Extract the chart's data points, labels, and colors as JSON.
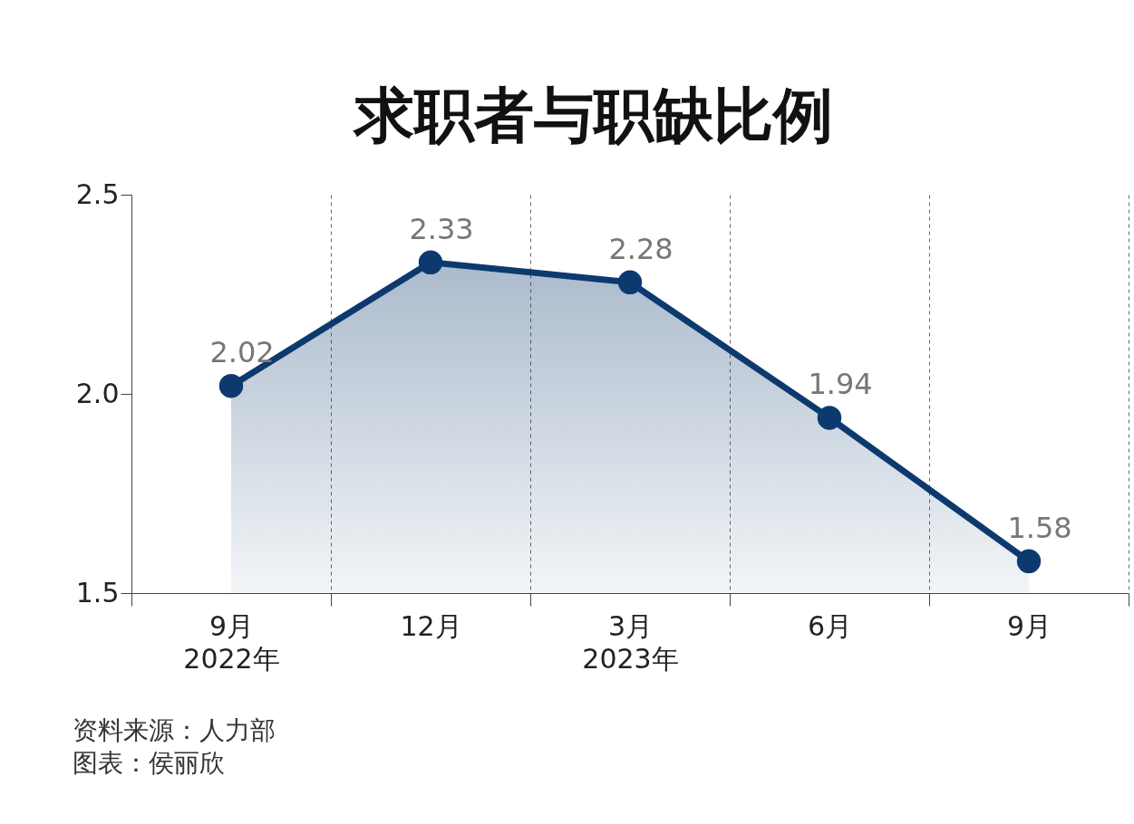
{
  "chart_data": {
    "type": "area",
    "title": "求职者与职缺比例",
    "categories": [
      "9月\n2022年",
      "12月",
      "3月\n2023年",
      "6月",
      "9月"
    ],
    "series": [
      {
        "color": "#0d3a6e",
        "values": [
          2.02,
          2.33,
          2.28,
          1.94,
          1.58
        ]
      }
    ],
    "ylim": [
      1.5,
      2.5
    ],
    "yticks": [
      1.5,
      {
        "value": 2.0,
        "label": "2.0"
      },
      2.5
    ],
    "grid": "x",
    "marker": "circle",
    "data_labels": true,
    "annotations": [
      "资料来源：人力部",
      "图表：侯丽欣"
    ]
  }
}
